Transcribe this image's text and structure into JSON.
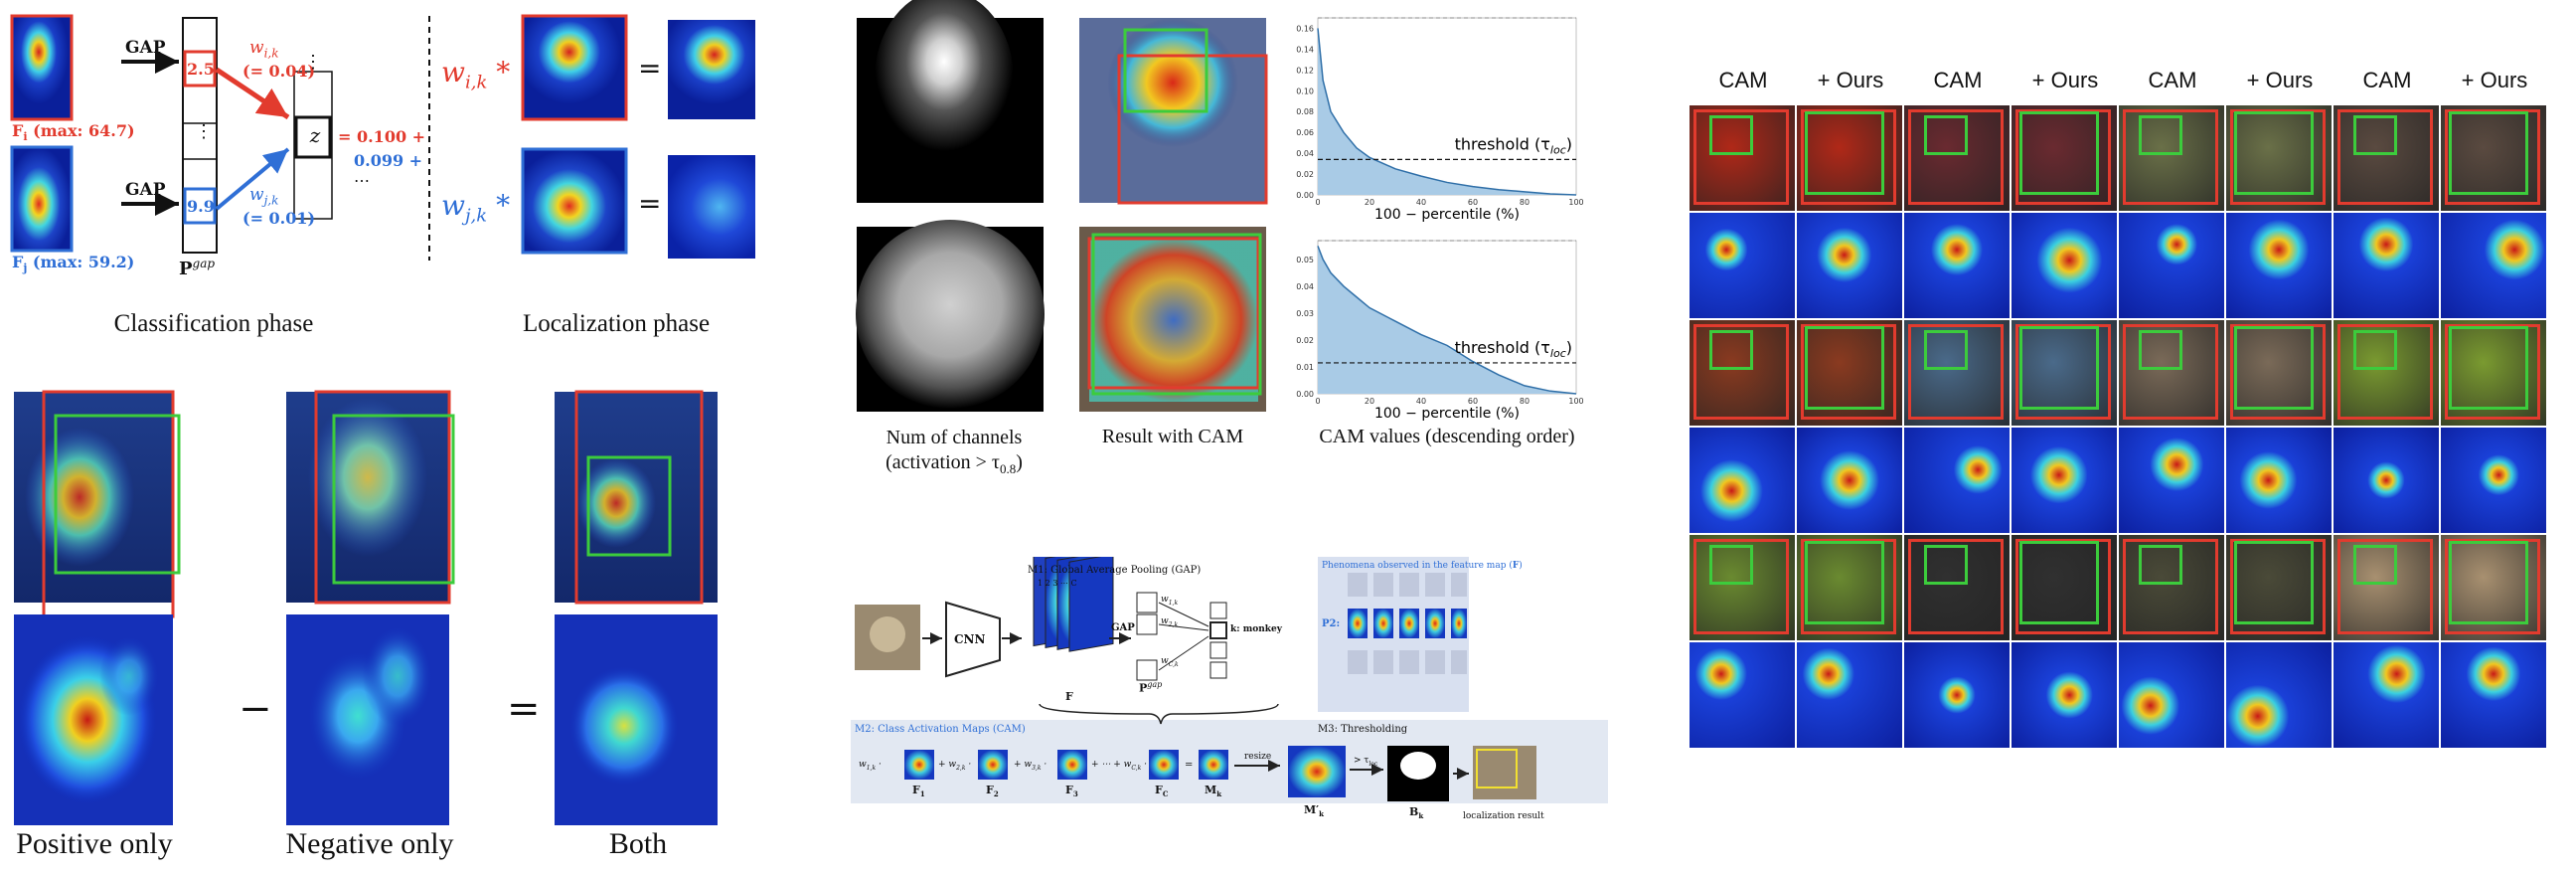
{
  "panelA": {
    "gap_label_1": "GAP",
    "gap_label_2": "GAP",
    "value_1": "2.5",
    "value_2": "9.9",
    "w_ik": "w",
    "w_ik_sub": "i,k",
    "w_ik_val": "(= 0.04)",
    "w_jk": "w",
    "w_jk_sub": "j,k",
    "w_jk_val": "(= 0.01)",
    "z": "z",
    "eq_1": "= 0.100 +",
    "eq_2": "0.099 +",
    "eq_3": "⋯",
    "fi_label": "F",
    "fi_sub": "i",
    "fi_max": "(max: 64.7)",
    "fj_label": "F",
    "fj_sub": "j",
    "fj_max": "(max: 59.2)",
    "pgap": "P",
    "pgap_sup": "gap",
    "vdots": "⋮",
    "loc_wi": "w",
    "loc_wi_sub": "i,k",
    "loc_wj": "w",
    "loc_wj_sub": "j,k",
    "star": "*",
    "equals": "=",
    "classification_phase": "Classification phase",
    "localization_phase": "Localization phase",
    "colors": {
      "red": "#e23b2e",
      "blue": "#2f6fd6"
    }
  },
  "panelB": {
    "minus": "−",
    "equals": "=",
    "positive_only": "Positive only",
    "negative_only": "Negative only",
    "both": "Both"
  },
  "panelC": {
    "cap1_line1": "Num of channels",
    "cap1_line2": "(activation > τ",
    "cap1_sub": "0.8",
    "cap1_close": ")",
    "cap2": "Result with CAM",
    "cap3": "CAM values (descending order)"
  },
  "chart_data": [
    {
      "type": "area",
      "x": [
        0,
        2,
        5,
        10,
        15,
        20,
        30,
        40,
        50,
        60,
        70,
        80,
        90,
        100
      ],
      "y": [
        0.16,
        0.11,
        0.08,
        0.06,
        0.045,
        0.036,
        0.025,
        0.018,
        0.012,
        0.008,
        0.005,
        0.003,
        0.001,
        0.0
      ],
      "xlabel": "100 − percentile (%)",
      "ylabel": "",
      "xlim": [
        0,
        100
      ],
      "ylim": [
        0,
        0.17
      ],
      "yticks": [
        "0.00",
        "0.02",
        "0.04",
        "0.06",
        "0.08",
        "0.10",
        "0.12",
        "0.14",
        "0.16"
      ],
      "xticks": [
        "0",
        "20",
        "40",
        "60",
        "80",
        "100"
      ],
      "threshold": 0.034,
      "threshold_label": "threshold (τ",
      "threshold_sub": "loc",
      "threshold_close": ")"
    },
    {
      "type": "area",
      "x": [
        0,
        2,
        5,
        10,
        15,
        20,
        30,
        40,
        50,
        60,
        70,
        80,
        90,
        100
      ],
      "y": [
        0.055,
        0.05,
        0.045,
        0.04,
        0.036,
        0.032,
        0.027,
        0.022,
        0.018,
        0.012,
        0.007,
        0.003,
        0.001,
        0.0
      ],
      "xlabel": "100 − percentile (%)",
      "ylabel": "",
      "xlim": [
        0,
        100
      ],
      "ylim": [
        0,
        0.057
      ],
      "yticks": [
        "0.00",
        "0.01",
        "0.02",
        "0.03",
        "0.04",
        "0.05"
      ],
      "xticks": [
        "0",
        "20",
        "40",
        "60",
        "80",
        "100"
      ],
      "threshold": 0.0115,
      "threshold_label": "threshold (τ",
      "threshold_sub": "loc",
      "threshold_close": ")"
    }
  ],
  "panelD": {
    "m1_title": "M1: Global Average Pooling (GAP)",
    "cnn": "CNN",
    "gap": "GAP",
    "F": "F",
    "pgap": "P",
    "pgap_sup": "gap",
    "k_monkey": "k: monkey",
    "w1k": "w",
    "w1k_sub": "1,k",
    "w2k": "w",
    "w2k_sub": "2,k",
    "wck": "w",
    "wck_sub": "C,k",
    "channel_nums": "1  2  3  ⋯  C",
    "p2_title": "Phenomena observed in the feature map (",
    "p2_title_F": "F",
    "p2_title_close": ")",
    "p2": "P2:",
    "m2_title": "M2: Class Activation Maps (CAM)",
    "m3_title": "M3: Thresholding",
    "resize": "resize",
    "gt_tau": "> τ",
    "gt_tau_sub": "loc",
    "F1": "F",
    "F1_sub": "1",
    "F2": "F",
    "F2_sub": "2",
    "F3": "F",
    "F3_sub": "3",
    "FC": "F",
    "FC_sub": "C",
    "Mk": "M",
    "Mk_sub": "k",
    "Mk_prime": "M′",
    "Mk_prime_sub": "k",
    "Bk": "B",
    "Bk_sub": "k",
    "loc_result": "localization result",
    "plus_w2k": "+ w",
    "plus_w2k_sub": "2,k",
    "plus_w3k": "+ w",
    "plus_w3k_sub": "3,k",
    "plus_wck": "+ ⋯ + w",
    "plus_wck_sub": "C,k",
    "w1k_lead": "w",
    "w1k_lead_sub": "1,k",
    "approx": "="
  },
  "panelE": {
    "headers": [
      "CAM",
      "+ Ours",
      "CAM",
      "+ Ours",
      "CAM",
      "+ Ours",
      "CAM",
      "+ Ours"
    ]
  }
}
